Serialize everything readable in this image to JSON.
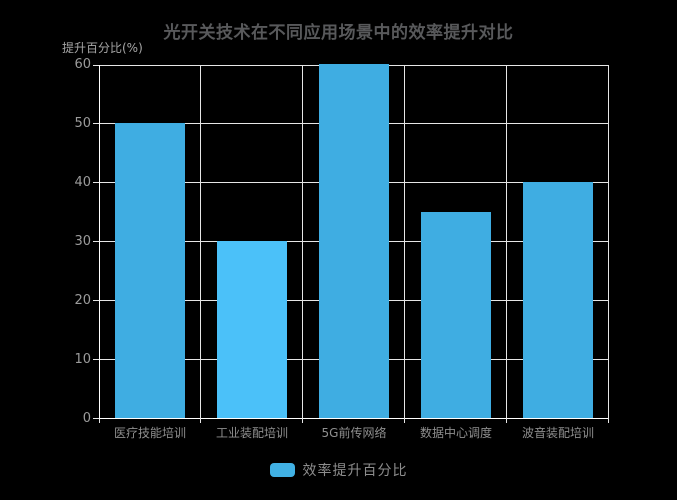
{
  "chart": {
    "title": "光开关技术在不同应用场景中的效率提升对比",
    "legend": {
      "label": "效率提升百分比",
      "swatch_color": "#41b1e4"
    },
    "colors": {
      "background": "#000000",
      "title_text": "#58595b",
      "grid_line": "#e6e6e6",
      "axis_line": "#ffffff",
      "tick_label": "#9b9b9b",
      "category_label": "#8f8f8f",
      "axis_name_text": "#a6a6a6",
      "bar_default": "#3fade2",
      "bar_highlight": "#4bc1f9"
    }
  },
  "chart_data": {
    "type": "bar",
    "title": "光开关技术在不同应用场景中的效率提升对比",
    "categories": [
      "医疗技能培训",
      "工业装配培训",
      "5G前传网络",
      "数据中心调度",
      "波音装配培训"
    ],
    "series": [
      {
        "name": "效率提升百分比",
        "values": [
          50,
          30,
          60,
          35,
          40
        ]
      }
    ],
    "bar_colors": [
      "#3fade2",
      "#4bc1f9",
      "#3fade2",
      "#3fade2",
      "#3fade2"
    ],
    "xlabel": "",
    "ylabel": "提升百分比(%)",
    "ylim": [
      0,
      60
    ],
    "yticks": [
      0,
      10,
      20,
      30,
      40,
      50,
      60
    ],
    "grid": true,
    "legend_position": "bottom"
  }
}
